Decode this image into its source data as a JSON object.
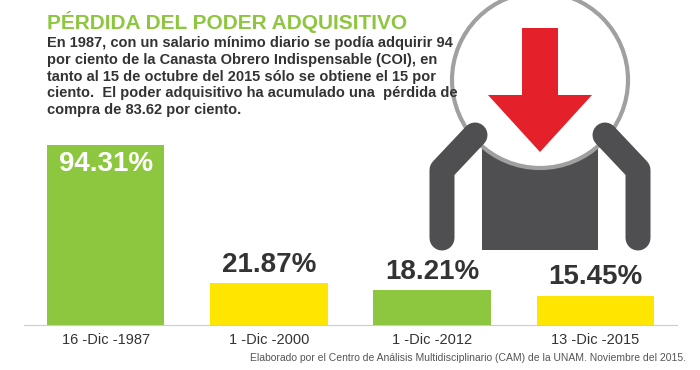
{
  "chart_data": {
    "type": "bar",
    "title": "PÉRDIDA DEL PODER ADQUISITIVO",
    "subtitle": "En 1987, con un salario mínimo diario se podía adquirir 94 por ciento de la Canasta Obrero Indispensable (COI), en tanto al 15 de octubre del 2015 sólo se obtiene el 15 por ciento.  El poder adquisitivo ha acumulado una  pérdida de compra de 83.62 por ciento.",
    "source": "Elaborado por el Centro de Análisis Multidisciplinario (CAM) de la UNAM. Noviembre del 2015.",
    "categories": [
      "16 -Dic -1987",
      "1 -Dic -2000",
      "1 -Dic -2012",
      "13 -Dic -2015"
    ],
    "values": [
      94.31,
      21.87,
      18.21,
      15.45
    ],
    "value_labels": [
      "94.31%",
      "21.87%",
      "18.21%",
      "15.45%"
    ],
    "colors": [
      "#8dc63f",
      "#ffe600",
      "#8dc63f",
      "#ffe600"
    ],
    "data_labels": true,
    "tick_labels": "x",
    "grid": false
  }
}
